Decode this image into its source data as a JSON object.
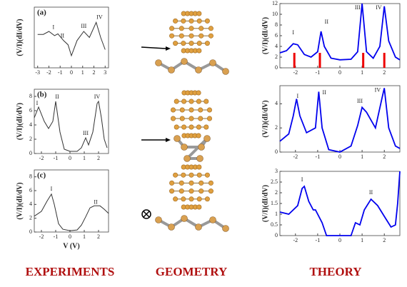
{
  "chart_data": [
    {
      "type": "line",
      "panel_label": "(a)",
      "y_label": "(V/I)(dI/dV)",
      "color": "#333333",
      "xlim": [
        -3.3,
        3.3
      ],
      "ylim": [
        0,
        10
      ],
      "xticks": [
        -3,
        -2,
        -1,
        0,
        1,
        2,
        3
      ],
      "x": [
        -3,
        -2.5,
        -2,
        -1.5,
        -1.2,
        -0.7,
        -0.3,
        0,
        0.5,
        1.1,
        1.6,
        2.2,
        2.6,
        3
      ],
      "values": [
        5.5,
        5.5,
        6,
        5.3,
        5.6,
        4.5,
        3.8,
        2,
        4.5,
        6,
        5,
        7.5,
        5,
        3
      ],
      "annotations": [
        {
          "text": "I",
          "x": -1.6,
          "y": 6.6
        },
        {
          "text": "II",
          "x": -0.8,
          "y": 5.2
        },
        {
          "text": "III",
          "x": 1.1,
          "y": 6.8
        },
        {
          "text": "IV",
          "x": 2.5,
          "y": 8.3
        }
      ]
    },
    {
      "type": "line",
      "panel_label": "(b)",
      "y_label": "(V/I)(dI/dV)",
      "color": "#333333",
      "xlim": [
        -2.5,
        2.7
      ],
      "ylim": [
        0,
        9
      ],
      "xticks": [
        -2,
        -1,
        0,
        1,
        2
      ],
      "yticks": [
        0,
        2,
        4,
        6,
        8
      ],
      "x": [
        -2.5,
        -2.2,
        -1.8,
        -1.5,
        -1.2,
        -1,
        -0.7,
        -0.4,
        0,
        0.5,
        0.8,
        1.1,
        1.3,
        1.6,
        1.9,
        2,
        2.2,
        2.4,
        2.6
      ],
      "values": [
        5,
        6.5,
        4.5,
        3.5,
        4.5,
        7.3,
        3,
        0.6,
        0.3,
        0.3,
        0.8,
        2.2,
        1.2,
        3,
        7,
        7.3,
        5,
        2,
        0.8
      ],
      "annotations": [
        {
          "text": "I",
          "x": -2.3,
          "y": 7
        },
        {
          "text": "II",
          "x": -0.9,
          "y": 7.9
        },
        {
          "text": "III",
          "x": 1.1,
          "y": 2.8
        },
        {
          "text": "IV",
          "x": 1.9,
          "y": 7.9
        }
      ]
    },
    {
      "type": "line",
      "panel_label": "(c)",
      "y_label": "(V/I)(dI/dV)",
      "x_label": "V (V)",
      "color": "#333333",
      "xlim": [
        -2.5,
        2.7
      ],
      "ylim": [
        0,
        9
      ],
      "xticks": [
        -2,
        -1,
        0,
        1,
        2
      ],
      "yticks": [
        0,
        2,
        4,
        6,
        8
      ],
      "x": [
        -2.5,
        -2,
        -1.6,
        -1.3,
        -1.1,
        -0.8,
        -0.5,
        0,
        0.5,
        0.8,
        1.1,
        1.4,
        1.7,
        2.1,
        2.4,
        2.7
      ],
      "values": [
        2.3,
        3,
        4.5,
        5.5,
        4,
        1.2,
        0.4,
        0.2,
        0.3,
        1,
        2.2,
        3.5,
        3.8,
        3.8,
        3.3,
        2.7
      ],
      "annotations": [
        {
          "text": "I",
          "x": -1.3,
          "y": 6.2
        },
        {
          "text": "II",
          "x": 1.8,
          "y": 4.3
        }
      ]
    },
    {
      "type": "line",
      "y_label": "(V/I)(dI/dV)",
      "color": "#0000ee",
      "xlim": [
        -2.7,
        2.7
      ],
      "ylim": [
        0,
        12
      ],
      "xticks": [
        -2,
        -1,
        0,
        1,
        2
      ],
      "yticks": [
        0,
        2,
        4,
        6,
        8,
        10,
        12
      ],
      "x": [
        -2.7,
        -2.4,
        -2.1,
        -1.9,
        -1.6,
        -1.3,
        -1,
        -0.85,
        -0.7,
        -0.4,
        0,
        0.5,
        0.8,
        1,
        1.2,
        1.5,
        1.8,
        2,
        2.2,
        2.5,
        2.7
      ],
      "values": [
        2.8,
        3.2,
        4.5,
        4.3,
        2.5,
        2,
        3,
        6.8,
        4,
        1.8,
        1.5,
        1.6,
        3,
        12,
        3,
        1.8,
        4,
        11.5,
        5,
        2,
        1.5
      ],
      "stems": {
        "color": "#ee0000",
        "x": [
          -2.05,
          -0.9,
          1.05,
          2
        ],
        "values": [
          2.8,
          2.8,
          2.8,
          2.8
        ]
      },
      "annotations": [
        {
          "text": "I",
          "x": -2.1,
          "y": 6.5
        },
        {
          "text": "II",
          "x": -0.6,
          "y": 8.5
        },
        {
          "text": "III",
          "x": 0.8,
          "y": 11.2
        },
        {
          "text": "IV",
          "x": 1.75,
          "y": 11.2
        }
      ]
    },
    {
      "type": "line",
      "y_label": "(V/I)(dI/dV)",
      "color": "#0000ee",
      "xlim": [
        -2.7,
        2.7
      ],
      "ylim": [
        0,
        5.5
      ],
      "xticks": [
        -2,
        -1,
        0,
        1,
        2
      ],
      "yticks": [
        0,
        2,
        4
      ],
      "x": [
        -2.7,
        -2.3,
        -2.1,
        -1.95,
        -1.8,
        -1.5,
        -1.1,
        -0.95,
        -0.8,
        -0.5,
        0,
        0.5,
        0.8,
        1,
        1.2,
        1.6,
        1.9,
        2,
        2.2,
        2.5,
        2.7
      ],
      "values": [
        0.9,
        1.5,
        3,
        4.4,
        3,
        1.6,
        2,
        5,
        2,
        0.2,
        0,
        0.5,
        2.2,
        3.7,
        3.3,
        2,
        4.5,
        5.3,
        2,
        0.5,
        0.3
      ],
      "annotations": [
        {
          "text": "I",
          "x": -1.9,
          "y": 4.6
        },
        {
          "text": "II",
          "x": -0.7,
          "y": 4.9
        },
        {
          "text": "III",
          "x": 0.9,
          "y": 4.2
        },
        {
          "text": "IV",
          "x": 1.7,
          "y": 5.1
        }
      ]
    },
    {
      "type": "line",
      "y_label": "(V/I)(dI/dV)",
      "color": "#0000ee",
      "xlim": [
        -2.7,
        2.7
      ],
      "ylim": [
        0,
        3
      ],
      "xticks": [
        -2,
        -1,
        0,
        1,
        2
      ],
      "yticks": [
        0,
        0.5,
        1,
        1.5,
        2,
        2.5,
        3
      ],
      "x": [
        -2.7,
        -2.3,
        -1.9,
        -1.7,
        -1.6,
        -1.4,
        -1.2,
        -1.1,
        -0.8,
        -0.6,
        0.5,
        0.7,
        0.9,
        1.1,
        1.4,
        1.7,
        2,
        2.3,
        2.5,
        2.6,
        2.7
      ],
      "values": [
        1.1,
        1,
        1.4,
        2.2,
        2.3,
        1.6,
        1.2,
        1.2,
        0.6,
        0,
        0,
        0.6,
        0.5,
        1.2,
        1.7,
        1.4,
        0.9,
        0.4,
        0.5,
        1.5,
        3
      ],
      "annotations": [
        {
          "text": "I",
          "x": -1.7,
          "y": 2.6
        },
        {
          "text": "II",
          "x": 1.4,
          "y": 2.0
        }
      ]
    }
  ],
  "column_labels": [
    "EXPERIMENTS",
    "GEOMETRY",
    "THEORY"
  ]
}
